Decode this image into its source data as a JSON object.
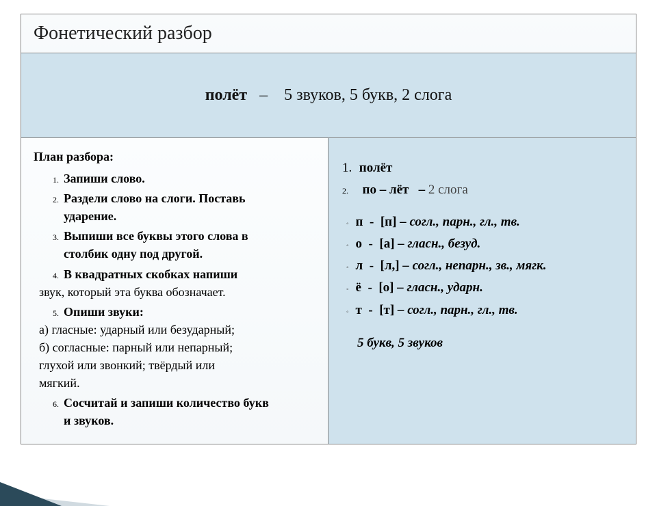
{
  "title": "Фонетический  разбор",
  "header": {
    "word": "полёт",
    "dash": "–",
    "stats": "5 звуков,  5 букв,  2 слога"
  },
  "plan": {
    "title": "План  разбора:",
    "items": [
      {
        "bold": "Запиши слово."
      },
      {
        "bold": "Раздели слово на слоги.  Поставь",
        "cont": "ударение."
      },
      {
        "bold": "Выпиши все буквы этого слова в",
        "cont": "столбик одну под другой."
      },
      {
        "bold": "В квадратных скобках напиши",
        "cont_plain": "звук, который эта буква обозначает."
      },
      {
        "bold": "Опиши звуки:",
        "subs": [
          "а)  гласные:  ударный или безударный;",
          "б)  согласные:  парный или непарный;",
          "      глухой или звонкий;  твёрдый или",
          "      мягкий."
        ]
      },
      {
        "bold": "Сосчитай и запиши количество букв",
        "cont": "и звуков."
      }
    ]
  },
  "example": {
    "line1_num": "1.",
    "line1_text": "полёт",
    "line2_num": "2.",
    "line2_bold": "по – лёт",
    "line2_dash": "–",
    "line2_tail": "2 слога",
    "phon": [
      {
        "l": "п",
        "b": "[п]",
        "d": "– согл., парн., гл., тв."
      },
      {
        "l": "о",
        "b": "[а]",
        "d": "– гласн., безуд."
      },
      {
        "l": "л",
        "b": "[л,]",
        "d": "– согл., непарн., зв., мягк."
      },
      {
        "l": "ё",
        "b": "[о]",
        "d": "– гласн., ударн."
      },
      {
        "l": "т",
        "b": "[т]",
        "d": "– согл., парн., гл., тв."
      }
    ],
    "summary": "5  букв,   5  звуков"
  },
  "colors": {
    "blue_bg": "#cfe2ed",
    "border": "#888888",
    "corner_dark": "#2b4a5a"
  }
}
